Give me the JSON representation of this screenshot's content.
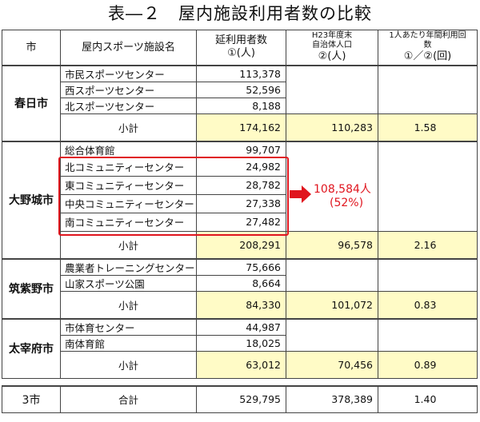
{
  "title": "表―２　屋内施設利用者数の比較",
  "headers": {
    "city": "市",
    "facility": "屋内スポーツ施設名",
    "users_line1": "延利用者数",
    "users_line2": "①(人)",
    "pop_line1": "H23年度末",
    "pop_line2": "自治体人口",
    "pop_line3": "②(人)",
    "rate_line1": "1人あたり年間利用回",
    "rate_line2": "数",
    "rate_line3": "①／②(回)"
  },
  "subtotal_label": "小計",
  "total_label": "合計",
  "cities": [
    {
      "name": "春日市",
      "facilities": [
        {
          "name": "市民スポーツセンター",
          "users": "113,378"
        },
        {
          "name": "西スポーツセンター",
          "users": "52,596"
        },
        {
          "name": "北スポーツセンター",
          "users": "8,188"
        }
      ],
      "subtotal": {
        "users": "174,162",
        "population": "110,283",
        "rate": "1.58"
      }
    },
    {
      "name": "大野城市",
      "facilities": [
        {
          "name": "総合体育館",
          "users": "99,707"
        },
        {
          "name": "北コミュニティーセンター",
          "users": "24,982"
        },
        {
          "name": "東コミュニティーセンター",
          "users": "28,782"
        },
        {
          "name": "中央コミュニティーセンター",
          "users": "27,338"
        },
        {
          "name": "南コミュニティーセンター",
          "users": "27,482"
        }
      ],
      "subtotal": {
        "users": "208,291",
        "population": "96,578",
        "rate": "2.16"
      }
    },
    {
      "name": "筑紫野市",
      "facilities": [
        {
          "name": "農業者トレーニングセンター",
          "users": "75,666"
        },
        {
          "name": "山家スポーツ公園",
          "users": "8,664"
        }
      ],
      "subtotal": {
        "users": "84,330",
        "population": "101,072",
        "rate": "0.83"
      }
    },
    {
      "name": "太宰府市",
      "facilities": [
        {
          "name": "市体育センター",
          "users": "44,987"
        },
        {
          "name": "南体育館",
          "users": "18,025"
        }
      ],
      "subtotal": {
        "users": "63,012",
        "population": "70,456",
        "rate": "0.89"
      }
    }
  ],
  "total": {
    "city": "3市",
    "users": "529,795",
    "population": "378,389",
    "rate": "1.40"
  },
  "callout": {
    "sum": "108,584人",
    "percent": "(52%)"
  },
  "colors": {
    "highlight": "#e0151e",
    "subtotal_fill": "#fffbc6"
  }
}
